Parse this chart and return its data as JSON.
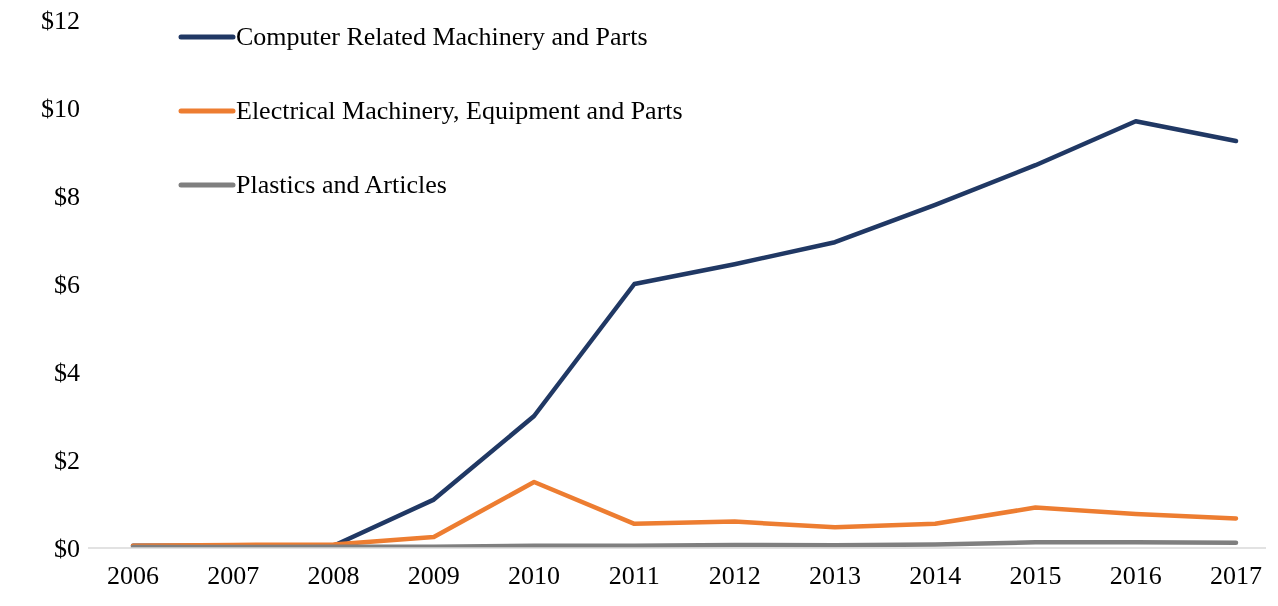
{
  "chart_data": {
    "type": "line",
    "categories": [
      "2006",
      "2007",
      "2008",
      "2009",
      "2010",
      "2011",
      "2012",
      "2013",
      "2014",
      "2015",
      "2016",
      "2017"
    ],
    "series": [
      {
        "name": "Computer Related Machinery and Parts",
        "color": "#203864",
        "values": [
          0.05,
          0.05,
          0.05,
          1.1,
          3.0,
          6.0,
          6.45,
          6.95,
          7.8,
          8.7,
          9.7,
          9.25
        ]
      },
      {
        "name": "Electrical Machinery, Equipment and Parts",
        "color": "#ed7d31",
        "values": [
          0.05,
          0.07,
          0.08,
          0.25,
          1.5,
          0.55,
          0.6,
          0.47,
          0.55,
          0.92,
          0.77,
          0.67
        ]
      },
      {
        "name": "Plastics and Articles",
        "color": "#7f7f7f",
        "values": [
          0.02,
          0.02,
          0.03,
          0.03,
          0.05,
          0.05,
          0.07,
          0.06,
          0.08,
          0.13,
          0.13,
          0.12
        ]
      }
    ],
    "ylim": [
      0,
      12
    ],
    "yticks": [
      {
        "value": 0,
        "label": "$0"
      },
      {
        "value": 2,
        "label": "$2"
      },
      {
        "value": 4,
        "label": "$4"
      },
      {
        "value": 6,
        "label": "$6"
      },
      {
        "value": 8,
        "label": "$8"
      },
      {
        "value": 10,
        "label": "$10"
      },
      {
        "value": 12,
        "label": "$12"
      }
    ],
    "grid": false,
    "legend": "top left",
    "marker": "none",
    "line_style": "solid"
  }
}
